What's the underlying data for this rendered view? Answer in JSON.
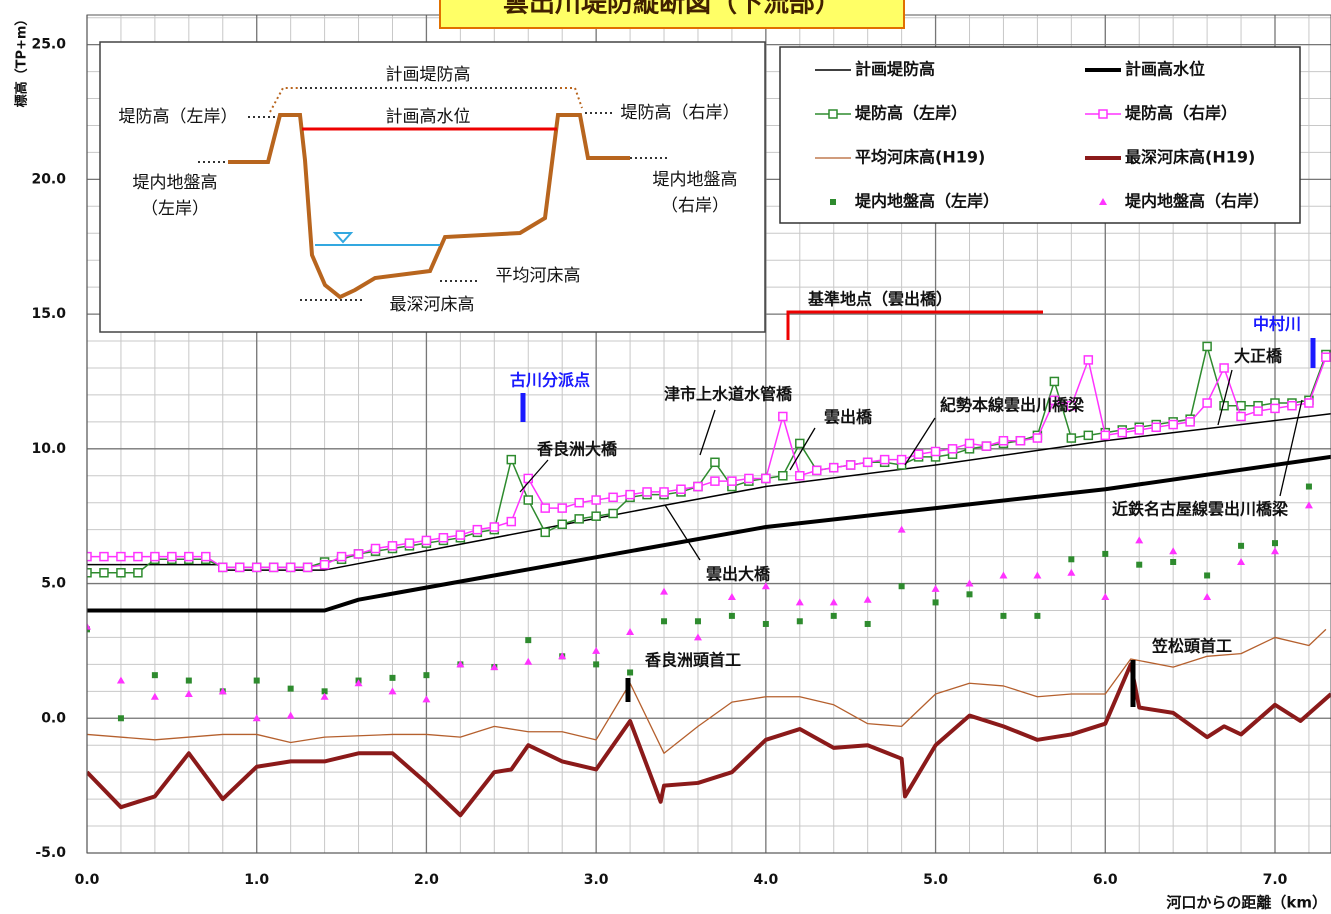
{
  "chart_data": {
    "type": "line",
    "title": "雲出川堤防縦断図（下流部）",
    "ylabel": "標高（TP+m）",
    "xlabel": "河口からの距離（km）",
    "xlim": [
      0,
      7.33
    ],
    "ylim": [
      -5,
      26.1
    ],
    "xticks": [
      {
        "value": 0,
        "label": "0.0"
      },
      {
        "value": 1,
        "label": "1.0"
      },
      {
        "value": 2,
        "label": "2.0"
      },
      {
        "value": 3,
        "label": "3.0"
      },
      {
        "value": 4,
        "label": "4.0"
      },
      {
        "value": 5,
        "label": "5.0"
      },
      {
        "value": 6,
        "label": "6.0"
      },
      {
        "value": 7,
        "label": "7.0"
      }
    ],
    "yticks": [
      {
        "value": -5,
        "label": "-5.0"
      },
      {
        "value": 0,
        "label": "0.0"
      },
      {
        "value": 5,
        "label": "5.0"
      },
      {
        "value": 10,
        "label": "10.0"
      },
      {
        "value": 15,
        "label": "15.0"
      },
      {
        "value": 20,
        "label": "20.0"
      },
      {
        "value": 25,
        "label": "25.0"
      }
    ],
    "grid": {
      "x_minor": 0.2,
      "y_minor": 1
    },
    "legend": "upper right",
    "series": [
      {
        "name": "計画堤防高",
        "color": "#000000",
        "width": 1.5,
        "marker": "none",
        "x": [
          0,
          0.78,
          0.78,
          1.4,
          3.4,
          4.0,
          5.0,
          6.0,
          7.33
        ],
        "values": [
          5.7,
          5.7,
          5.5,
          5.5,
          7.9,
          8.6,
          9.4,
          10.3,
          11.3
        ]
      },
      {
        "name": "計画高水位",
        "color": "#000000",
        "width": 4,
        "marker": "none",
        "x": [
          0,
          1.4,
          1.6,
          3.2,
          4.0,
          5.0,
          6.0,
          7.33
        ],
        "values": [
          4.0,
          4.0,
          4.4,
          6.2,
          7.1,
          7.8,
          8.5,
          9.7
        ]
      },
      {
        "name": "堤防高（左岸）",
        "color": "#2e8b2e",
        "width": 1.5,
        "marker": "square",
        "x": [
          0,
          0.1,
          0.2,
          0.3,
          0.4,
          0.5,
          0.6,
          0.7,
          0.8,
          0.9,
          1.0,
          1.1,
          1.2,
          1.3,
          1.4,
          1.5,
          1.6,
          1.7,
          1.8,
          1.9,
          2.0,
          2.1,
          2.2,
          2.3,
          2.4,
          2.5,
          2.6,
          2.7,
          2.8,
          2.9,
          3.0,
          3.1,
          3.2,
          3.3,
          3.4,
          3.5,
          3.6,
          3.7,
          3.8,
          3.9,
          4.0,
          4.1,
          4.2,
          4.3,
          4.4,
          4.5,
          4.6,
          4.7,
          4.8,
          4.9,
          5.0,
          5.1,
          5.2,
          5.3,
          5.4,
          5.5,
          5.6,
          5.7,
          5.8,
          5.9,
          6.0,
          6.1,
          6.2,
          6.3,
          6.4,
          6.5,
          6.6,
          6.7,
          6.8,
          6.9,
          7.0,
          7.1,
          7.2,
          7.3
        ],
        "values": [
          5.4,
          5.4,
          5.4,
          5.4,
          5.9,
          5.9,
          5.9,
          5.9,
          5.6,
          5.6,
          5.6,
          5.6,
          5.6,
          5.6,
          5.8,
          5.9,
          6.1,
          6.2,
          6.3,
          6.4,
          6.5,
          6.6,
          6.7,
          6.9,
          7.0,
          9.6,
          8.1,
          6.9,
          7.2,
          7.4,
          7.5,
          7.6,
          8.2,
          8.3,
          8.3,
          8.4,
          8.6,
          9.5,
          8.6,
          8.8,
          8.9,
          9.0,
          10.2,
          9.2,
          9.3,
          9.4,
          9.5,
          9.5,
          9.4,
          9.7,
          9.7,
          9.8,
          10.0,
          10.1,
          10.2,
          10.3,
          10.5,
          12.5,
          10.4,
          10.5,
          10.6,
          10.7,
          10.8,
          10.9,
          11.0,
          11.1,
          13.8,
          11.6,
          11.6,
          11.6,
          11.7,
          11.7,
          11.8,
          13.5
        ]
      },
      {
        "name": "堤防高（右岸）",
        "color": "#ff33ff",
        "width": 1.5,
        "marker": "square",
        "x": [
          0,
          0.1,
          0.2,
          0.3,
          0.4,
          0.5,
          0.6,
          0.7,
          0.8,
          0.9,
          1.0,
          1.1,
          1.2,
          1.3,
          1.4,
          1.5,
          1.6,
          1.7,
          1.8,
          1.9,
          2.0,
          2.1,
          2.2,
          2.3,
          2.4,
          2.5,
          2.6,
          2.7,
          2.8,
          2.9,
          3.0,
          3.1,
          3.2,
          3.3,
          3.4,
          3.5,
          3.6,
          3.7,
          3.8,
          3.9,
          4.0,
          4.1,
          4.2,
          4.3,
          4.4,
          4.5,
          4.6,
          4.7,
          4.8,
          4.9,
          5.0,
          5.1,
          5.2,
          5.3,
          5.4,
          5.5,
          5.6,
          5.7,
          5.8,
          5.9,
          6.0,
          6.1,
          6.2,
          6.3,
          6.4,
          6.5,
          6.6,
          6.7,
          6.8,
          6.9,
          7.0,
          7.1,
          7.2,
          7.3
        ],
        "values": [
          6.0,
          6.0,
          6.0,
          6.0,
          6.0,
          6.0,
          6.0,
          6.0,
          5.6,
          5.6,
          5.6,
          5.6,
          5.6,
          5.6,
          5.7,
          6.0,
          6.1,
          6.3,
          6.4,
          6.5,
          6.6,
          6.7,
          6.8,
          7.0,
          7.1,
          7.3,
          8.9,
          7.8,
          7.8,
          8.0,
          8.1,
          8.2,
          8.3,
          8.4,
          8.4,
          8.5,
          8.6,
          8.8,
          8.8,
          8.9,
          8.9,
          11.2,
          9.0,
          9.2,
          9.3,
          9.4,
          9.5,
          9.6,
          9.6,
          9.8,
          9.9,
          10.0,
          10.2,
          10.1,
          10.3,
          10.3,
          10.4,
          11.8,
          11.6,
          13.3,
          10.5,
          10.6,
          10.7,
          10.8,
          10.9,
          11.0,
          11.7,
          13.0,
          11.2,
          11.4,
          11.5,
          11.6,
          11.7,
          13.4
        ]
      },
      {
        "name": "平均河床高(H19)",
        "color": "#b5602e",
        "width": 1.3,
        "marker": "none",
        "x": [
          0,
          0.4,
          0.8,
          1.0,
          1.2,
          1.4,
          1.8,
          2.0,
          2.2,
          2.4,
          2.6,
          2.8,
          3.0,
          3.2,
          3.4,
          3.6,
          3.8,
          4.0,
          4.2,
          4.4,
          4.6,
          4.8,
          5.0,
          5.2,
          5.4,
          5.6,
          5.8,
          6.0,
          6.15,
          6.4,
          6.6,
          6.8,
          7.0,
          7.2,
          7.3
        ],
        "values": [
          -0.6,
          -0.8,
          -0.6,
          -0.6,
          -0.9,
          -0.7,
          -0.6,
          -0.6,
          -0.7,
          -0.3,
          -0.5,
          -0.5,
          -0.8,
          1.3,
          -1.3,
          -0.3,
          0.6,
          0.8,
          0.8,
          0.5,
          -0.2,
          -0.3,
          0.9,
          1.3,
          1.2,
          0.8,
          0.9,
          0.9,
          2.2,
          1.9,
          2.3,
          2.4,
          3.0,
          2.7,
          3.3
        ]
      },
      {
        "name": "最深河床高(H19)",
        "color": "#8b1a1a",
        "width": 4,
        "marker": "none",
        "x": [
          0,
          0.2,
          0.4,
          0.6,
          0.8,
          1.0,
          1.2,
          1.4,
          1.6,
          1.8,
          2.0,
          2.2,
          2.4,
          2.5,
          2.6,
          2.8,
          3.0,
          3.2,
          3.38,
          3.4,
          3.6,
          3.8,
          4.0,
          4.2,
          4.4,
          4.6,
          4.8,
          4.82,
          5.0,
          5.2,
          5.4,
          5.6,
          5.8,
          6.0,
          6.15,
          6.2,
          6.4,
          6.6,
          6.7,
          6.8,
          7.0,
          7.15,
          7.33
        ],
        "values": [
          -2.0,
          -3.3,
          -2.9,
          -1.3,
          -3.0,
          -1.8,
          -1.6,
          -1.6,
          -1.3,
          -1.3,
          -2.4,
          -3.6,
          -2.0,
          -1.9,
          -1.0,
          -1.6,
          -1.9,
          -0.1,
          -3.1,
          -2.5,
          -2.4,
          -2.0,
          -0.8,
          -0.4,
          -1.1,
          -1.0,
          -1.5,
          -2.9,
          -1.0,
          0.1,
          -0.3,
          -0.8,
          -0.6,
          -0.2,
          2.0,
          0.4,
          0.2,
          -0.7,
          -0.3,
          -0.6,
          0.5,
          -0.1,
          0.9
        ]
      },
      {
        "name": "堤内地盤高（左岸）",
        "color": "#2e8b2e",
        "width": 0,
        "marker": "dot",
        "x": [
          0,
          0.2,
          0.4,
          0.6,
          0.8,
          1.0,
          1.2,
          1.4,
          1.6,
          1.8,
          2.0,
          2.2,
          2.4,
          2.6,
          2.8,
          3.0,
          3.2,
          3.4,
          3.6,
          3.8,
          4.0,
          4.2,
          4.4,
          4.6,
          4.8,
          5.0,
          5.2,
          5.4,
          5.6,
          5.8,
          6.0,
          6.2,
          6.4,
          6.6,
          6.8,
          7.0,
          7.2
        ],
        "values": [
          3.3,
          0,
          1.6,
          1.4,
          1.0,
          1.4,
          1.1,
          1.0,
          1.4,
          1.5,
          1.6,
          2.0,
          1.9,
          2.9,
          2.3,
          2.0,
          1.7,
          3.6,
          3.6,
          3.8,
          3.5,
          3.6,
          3.8,
          3.5,
          4.9,
          4.3,
          4.6,
          3.8,
          3.8,
          5.9,
          6.1,
          5.7,
          5.8,
          5.3,
          6.4,
          6.5,
          8.6
        ]
      },
      {
        "name": "堤内地盤高（右岸）",
        "color": "#ff33ff",
        "width": 0,
        "marker": "triangle",
        "x": [
          0,
          0.2,
          0.4,
          0.6,
          0.8,
          1.0,
          1.2,
          1.4,
          1.6,
          1.8,
          2.0,
          2.2,
          2.4,
          2.6,
          2.8,
          3.0,
          3.2,
          3.4,
          3.6,
          3.8,
          4.0,
          4.2,
          4.4,
          4.6,
          4.8,
          5.0,
          5.2,
          5.4,
          5.6,
          5.8,
          6.0,
          6.2,
          6.4,
          6.6,
          6.8,
          7.0,
          7.2
        ],
        "values": [
          3.4,
          1.4,
          0.8,
          0.9,
          1.0,
          0,
          0.1,
          0.8,
          1.3,
          1.0,
          0.7,
          2.0,
          1.9,
          2.1,
          2.3,
          2.5,
          3.2,
          4.7,
          3.0,
          4.5,
          4.9,
          4.3,
          4.3,
          4.4,
          7.0,
          4.8,
          5.0,
          5.3,
          5.3,
          5.4,
          4.5,
          6.6,
          6.2,
          4.5,
          5.8,
          6.2,
          7.9
        ]
      }
    ],
    "annotations": [
      "古川分派点",
      "香良洲大橋",
      "津市上水道水管橋",
      "雲出橋",
      "紀勢本線雲出川橋梁",
      "基準地点（雲出橋）",
      "中村川",
      "大正橋",
      "近鉄名古屋線雲出川橋梁",
      "雲出大橋",
      "香良洲頭首工",
      "笠松頭首工"
    ],
    "inset_labels": [
      "計画堤防高",
      "堤防高（左岸）",
      "計画高水位",
      "堤防高（右岸）",
      "堤内地盤高",
      "（左岸）",
      "堤内地盤高",
      "（右岸）",
      "平均河床高",
      "最深河床高"
    ]
  }
}
